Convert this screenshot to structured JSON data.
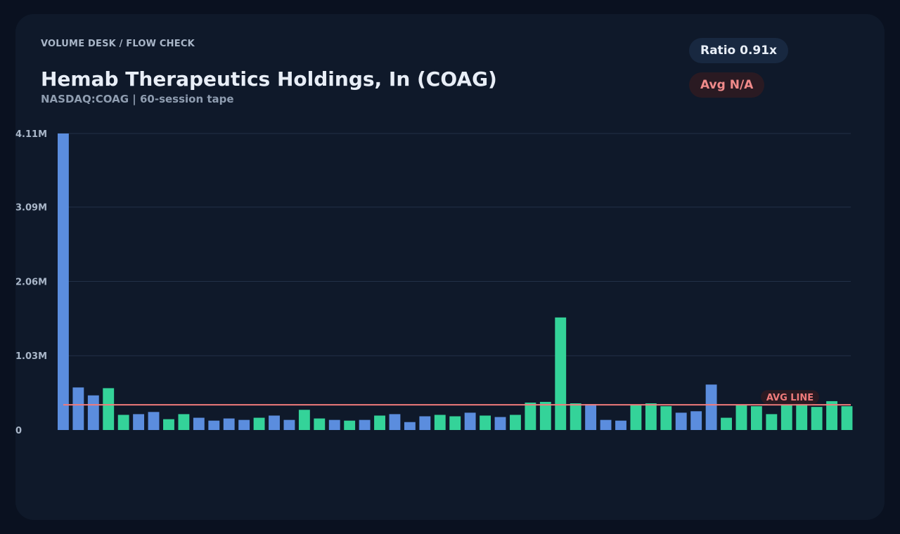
{
  "header": {
    "kicker": "VOLUME DESK / FLOW CHECK",
    "title": "Hemab Therapeutics Holdings, In (COAG)",
    "subtitle": "NASDAQ:COAG | 60-session tape"
  },
  "badges": {
    "ratio": "Ratio 0.91x",
    "avg": "Avg N/A"
  },
  "colors": {
    "up": "#34d399",
    "down": "#5b8dde",
    "avg_line": "#f07b7b",
    "grid": "#223047"
  },
  "chart_data": {
    "type": "bar",
    "title": "",
    "xlabel": "",
    "ylabel": "",
    "ylim": [
      0,
      4110000
    ],
    "yticks": [
      "0",
      "1.03M",
      "2.06M",
      "3.09M",
      "4.11M"
    ],
    "ytick_values": [
      0,
      1030000,
      2060000,
      3090000,
      4110000
    ],
    "grid": true,
    "avg_line_value": 350000,
    "avg_line_label": "AVG LINE",
    "series": [
      {
        "values": [
          4110000,
          590000,
          480000,
          580000,
          210000,
          220000,
          250000,
          150000,
          220000,
          170000,
          130000,
          160000,
          140000,
          170000,
          200000,
          140000,
          280000,
          160000,
          140000,
          130000,
          140000,
          200000,
          220000,
          110000,
          190000,
          210000,
          190000,
          240000,
          200000,
          180000,
          210000,
          380000,
          390000,
          1560000,
          370000,
          360000,
          140000,
          130000,
          350000,
          370000,
          330000,
          240000,
          260000,
          630000,
          170000,
          350000,
          330000,
          220000,
          350000,
          360000,
          320000,
          400000,
          330000
        ],
        "direction": [
          "down",
          "down",
          "down",
          "up",
          "up",
          "down",
          "down",
          "up",
          "up",
          "down",
          "down",
          "down",
          "down",
          "up",
          "down",
          "down",
          "up",
          "up",
          "down",
          "up",
          "down",
          "up",
          "down",
          "down",
          "down",
          "up",
          "up",
          "down",
          "up",
          "down",
          "up",
          "up",
          "up",
          "up",
          "up",
          "down",
          "down",
          "down",
          "up",
          "up",
          "up",
          "down",
          "down",
          "down",
          "up",
          "up",
          "up",
          "up",
          "up",
          "up",
          "up",
          "up",
          "up"
        ]
      }
    ]
  }
}
